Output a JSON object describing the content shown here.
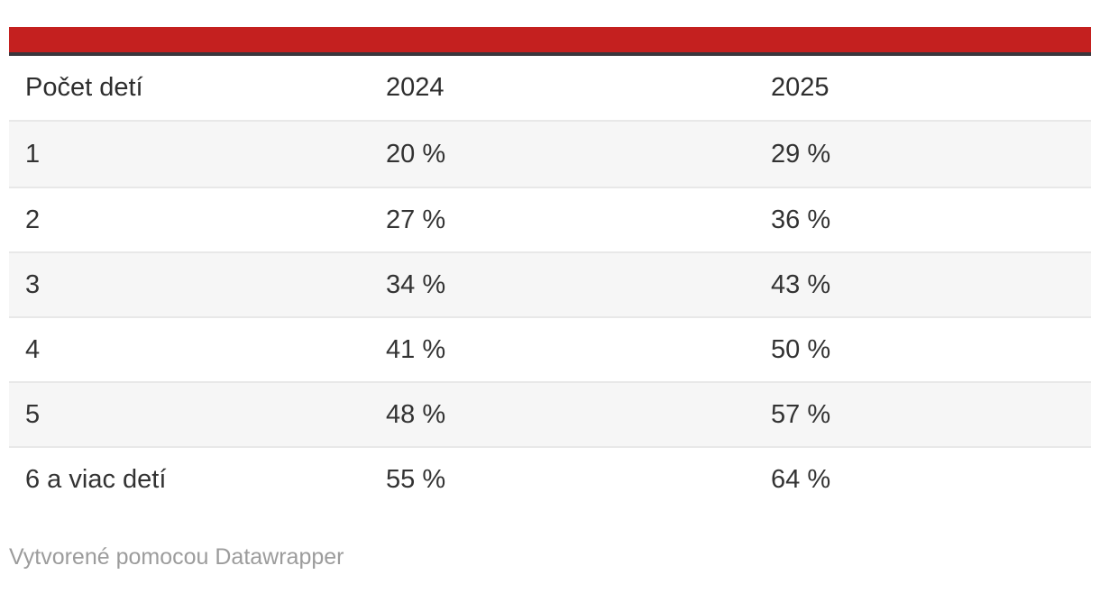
{
  "chart_data": {
    "type": "table",
    "title": "",
    "columns": [
      "Počet detí",
      "2024",
      "2025"
    ],
    "rows": [
      [
        "1",
        "20 %",
        "29 %"
      ],
      [
        "2",
        "27 %",
        "36 %"
      ],
      [
        "3",
        "34 %",
        "43 %"
      ],
      [
        "4",
        "41 %",
        "50 %"
      ],
      [
        "5",
        "48 %",
        "57 %"
      ],
      [
        "6 a viac detí",
        "55 %",
        "64 %"
      ]
    ],
    "categories": [
      "1",
      "2",
      "3",
      "4",
      "5",
      "6 a viac detí"
    ],
    "series": [
      {
        "name": "2024",
        "values": [
          20,
          27,
          34,
          41,
          48,
          55
        ]
      },
      {
        "name": "2025",
        "values": [
          29,
          36,
          43,
          50,
          57,
          64
        ]
      }
    ],
    "unit": "%",
    "layout_hints": {
      "striped_rows": true,
      "stripe_rows_indices": [
        0,
        2,
        4
      ],
      "header_rule": true
    }
  },
  "footer": {
    "attribution": "Vytvorené pomocou Datawrapper"
  },
  "colors": {
    "accent_red": "#c4201f",
    "header_rule_dark": "#3a363c",
    "row_alt_bg": "#f6f6f6",
    "row_border": "#e8e8e8",
    "text": "#333333",
    "footer_text": "#9c9c9c",
    "background": "#ffffff"
  }
}
